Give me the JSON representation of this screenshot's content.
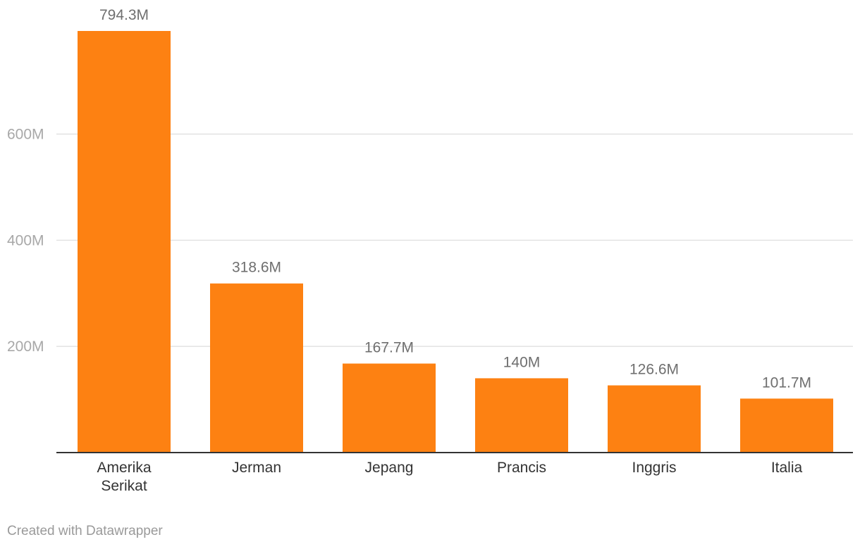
{
  "chart_data": {
    "type": "bar",
    "categories": [
      [
        "Amerika",
        "Serikat"
      ],
      [
        "Jerman"
      ],
      [
        "Jepang"
      ],
      [
        "Prancis"
      ],
      [
        "Inggris"
      ],
      [
        "Italia"
      ]
    ],
    "values": [
      794.3,
      318.6,
      167.7,
      140,
      126.6,
      101.7
    ],
    "value_labels": [
      "794.3M",
      "318.6M",
      "167.7M",
      "140M",
      "126.6M",
      "101.7M"
    ],
    "y_ticks": [
      200,
      400,
      600
    ],
    "y_tick_labels": [
      "200M",
      "400M",
      "600M"
    ],
    "ylim": [
      0,
      794.3
    ],
    "bar_color": "#fd8112",
    "grid": true
  },
  "footer": {
    "credit": "Created with Datawrapper"
  }
}
